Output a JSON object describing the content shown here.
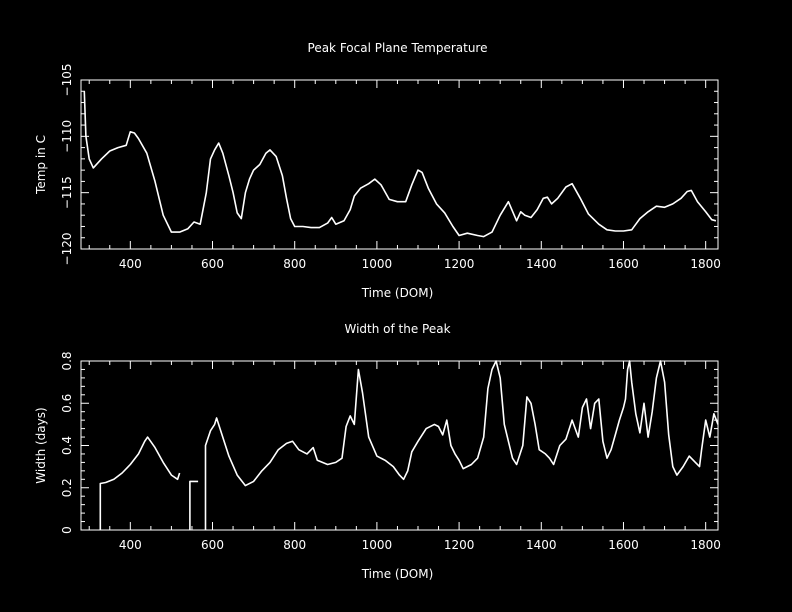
{
  "chart_data": [
    {
      "type": "line",
      "title": "Peak Focal Plane Temperature",
      "xlabel": "Time (DOM)",
      "ylabel": "Temp in C",
      "xlim": [
        280,
        1830
      ],
      "ylim": [
        -120,
        -105
      ],
      "xticks": [
        400,
        600,
        800,
        1000,
        1200,
        1400,
        1600,
        1800
      ],
      "xtick_labels": [
        "400",
        "600",
        "800",
        "1000",
        "1200",
        "1400",
        "1600",
        "1800"
      ],
      "yticks": [
        -120,
        -115,
        -110,
        -105
      ],
      "ytick_labels": [
        "−120",
        "−115",
        "−110",
        "−105"
      ],
      "grid": false,
      "series": [
        {
          "segments": [
            [
              [
                288,
                -106
              ],
              [
                292,
                -110
              ],
              [
                300,
                -112
              ],
              [
                310,
                -112.8
              ],
              [
                330,
                -112
              ],
              [
                350,
                -111.3
              ],
              [
                370,
                -111
              ],
              [
                390,
                -110.8
              ],
              [
                400,
                -109.6
              ],
              [
                410,
                -109.7
              ],
              [
                420,
                -110.2
              ],
              [
                440,
                -111.5
              ],
              [
                460,
                -114
              ],
              [
                480,
                -117
              ],
              [
                500,
                -118.5
              ],
              [
                520,
                -118.5
              ],
              [
                540,
                -118.2
              ],
              [
                555,
                -117.6
              ],
              [
                570,
                -117.8
              ],
              [
                585,
                -115
              ],
              [
                595,
                -112
              ],
              [
                605,
                -111.2
              ],
              [
                615,
                -110.6
              ],
              [
                625,
                -111.5
              ],
              [
                640,
                -113.5
              ],
              [
                650,
                -115
              ],
              [
                660,
                -116.8
              ],
              [
                670,
                -117.3
              ],
              [
                680,
                -115
              ],
              [
                690,
                -113.8
              ],
              [
                700,
                -113
              ],
              [
                715,
                -112.5
              ],
              [
                730,
                -111.5
              ],
              [
                740,
                -111.2
              ],
              [
                755,
                -111.8
              ],
              [
                770,
                -113.5
              ],
              [
                780,
                -115.5
              ],
              [
                790,
                -117.3
              ],
              [
                800,
                -118
              ],
              [
                820,
                -118
              ],
              [
                840,
                -118.1
              ],
              [
                860,
                -118.1
              ],
              [
                880,
                -117.7
              ],
              [
                890,
                -117.2
              ],
              [
                900,
                -117.8
              ],
              [
                920,
                -117.5
              ],
              [
                935,
                -116.5
              ],
              [
                945,
                -115.3
              ],
              [
                960,
                -114.6
              ],
              [
                980,
                -114.2
              ],
              [
                995,
                -113.8
              ],
              [
                1010,
                -114.3
              ],
              [
                1030,
                -115.6
              ],
              [
                1050,
                -115.8
              ],
              [
                1070,
                -115.8
              ],
              [
                1085,
                -114.3
              ],
              [
                1100,
                -113
              ],
              [
                1110,
                -113.2
              ],
              [
                1125,
                -114.6
              ],
              [
                1145,
                -116
              ],
              [
                1165,
                -116.8
              ],
              [
                1185,
                -118
              ],
              [
                1200,
                -118.8
              ],
              [
                1220,
                -118.6
              ],
              [
                1245,
                -118.8
              ],
              [
                1260,
                -118.9
              ],
              [
                1280,
                -118.5
              ],
              [
                1300,
                -117
              ],
              [
                1320,
                -115.8
              ],
              [
                1340,
                -117.5
              ],
              [
                1350,
                -116.7
              ],
              [
                1360,
                -117
              ],
              [
                1375,
                -117.2
              ],
              [
                1390,
                -116.5
              ],
              [
                1405,
                -115.5
              ],
              [
                1415,
                -115.4
              ],
              [
                1425,
                -116
              ],
              [
                1440,
                -115.5
              ],
              [
                1460,
                -114.5
              ],
              [
                1475,
                -114.2
              ],
              [
                1495,
                -115.5
              ],
              [
                1515,
                -116.9
              ],
              [
                1540,
                -117.8
              ],
              [
                1560,
                -118.3
              ],
              [
                1580,
                -118.4
              ],
              [
                1600,
                -118.4
              ],
              [
                1620,
                -118.3
              ],
              [
                1640,
                -117.3
              ],
              [
                1660,
                -116.7
              ],
              [
                1680,
                -116.2
              ],
              [
                1700,
                -116.3
              ],
              [
                1720,
                -116
              ],
              [
                1740,
                -115.5
              ],
              [
                1755,
                -114.9
              ],
              [
                1765,
                -114.8
              ],
              [
                1780,
                -115.8
              ],
              [
                1800,
                -116.7
              ],
              [
                1815,
                -117.4
              ],
              [
                1825,
                -117.5
              ]
            ]
          ]
        }
      ]
    },
    {
      "type": "line",
      "title": "Width of the Peak",
      "xlabel": "Time (DOM)",
      "ylabel": "Width (days)",
      "xlim": [
        280,
        1830
      ],
      "ylim": [
        0,
        0.8
      ],
      "xticks": [
        400,
        600,
        800,
        1000,
        1200,
        1400,
        1600,
        1800
      ],
      "xtick_labels": [
        "400",
        "600",
        "800",
        "1000",
        "1200",
        "1400",
        "1600",
        "1800"
      ],
      "yticks": [
        0,
        0.2,
        0.4,
        0.6,
        0.8
      ],
      "ytick_labels": [
        "0",
        "0.2",
        "0.4",
        "0.6",
        "0.8"
      ],
      "grid": false,
      "series": [
        {
          "segments": [
            [
              [
                327,
                0
              ],
              [
                327,
                0.22
              ],
              [
                340,
                0.225
              ],
              [
                360,
                0.24
              ],
              [
                380,
                0.27
              ],
              [
                400,
                0.31
              ],
              [
                420,
                0.36
              ],
              [
                435,
                0.42
              ],
              [
                442,
                0.44
              ],
              [
                460,
                0.39
              ],
              [
                480,
                0.32
              ],
              [
                500,
                0.26
              ],
              [
                515,
                0.24
              ],
              [
                520,
                0.27
              ]
            ],
            [
              [
                545,
                0
              ],
              [
                545,
                0.23
              ],
              [
                565,
                0.23
              ]
            ],
            [
              [
                583,
                0
              ],
              [
                583,
                0.4
              ],
              [
                595,
                0.47
              ],
              [
                605,
                0.5
              ],
              [
                610,
                0.53
              ],
              [
                620,
                0.47
              ],
              [
                640,
                0.35
              ],
              [
                660,
                0.26
              ],
              [
                680,
                0.21
              ],
              [
                700,
                0.23
              ],
              [
                720,
                0.28
              ],
              [
                740,
                0.32
              ],
              [
                760,
                0.38
              ],
              [
                780,
                0.41
              ],
              [
                795,
                0.42
              ],
              [
                810,
                0.38
              ],
              [
                830,
                0.36
              ],
              [
                845,
                0.39
              ],
              [
                855,
                0.33
              ],
              [
                880,
                0.31
              ],
              [
                900,
                0.32
              ],
              [
                915,
                0.34
              ],
              [
                925,
                0.49
              ],
              [
                935,
                0.54
              ],
              [
                945,
                0.5
              ],
              [
                955,
                0.76
              ],
              [
                965,
                0.65
              ],
              [
                980,
                0.44
              ],
              [
                1000,
                0.35
              ],
              [
                1020,
                0.33
              ],
              [
                1040,
                0.3
              ],
              [
                1055,
                0.26
              ],
              [
                1065,
                0.24
              ],
              [
                1075,
                0.28
              ],
              [
                1085,
                0.37
              ],
              [
                1100,
                0.42
              ],
              [
                1120,
                0.48
              ],
              [
                1140,
                0.5
              ],
              [
                1150,
                0.49
              ],
              [
                1160,
                0.45
              ],
              [
                1170,
                0.52
              ],
              [
                1180,
                0.4
              ],
              [
                1190,
                0.36
              ],
              [
                1200,
                0.33
              ],
              [
                1210,
                0.29
              ],
              [
                1230,
                0.31
              ],
              [
                1245,
                0.34
              ],
              [
                1260,
                0.44
              ],
              [
                1270,
                0.67
              ],
              [
                1280,
                0.76
              ],
              [
                1290,
                0.8
              ],
              [
                1300,
                0.72
              ],
              [
                1310,
                0.5
              ],
              [
                1320,
                0.42
              ],
              [
                1330,
                0.34
              ],
              [
                1340,
                0.31
              ],
              [
                1355,
                0.4
              ],
              [
                1365,
                0.63
              ],
              [
                1375,
                0.6
              ],
              [
                1385,
                0.5
              ],
              [
                1395,
                0.38
              ],
              [
                1410,
                0.36
              ],
              [
                1420,
                0.34
              ],
              [
                1430,
                0.31
              ],
              [
                1445,
                0.4
              ],
              [
                1460,
                0.43
              ],
              [
                1475,
                0.52
              ],
              [
                1490,
                0.44
              ],
              [
                1500,
                0.58
              ],
              [
                1510,
                0.62
              ],
              [
                1520,
                0.48
              ],
              [
                1530,
                0.6
              ],
              [
                1540,
                0.62
              ],
              [
                1550,
                0.42
              ],
              [
                1560,
                0.34
              ],
              [
                1570,
                0.38
              ],
              [
                1580,
                0.45
              ],
              [
                1590,
                0.52
              ],
              [
                1600,
                0.58
              ],
              [
                1605,
                0.62
              ],
              [
                1610,
                0.76
              ],
              [
                1615,
                0.8
              ],
              [
                1620,
                0.7
              ],
              [
                1630,
                0.55
              ],
              [
                1640,
                0.46
              ],
              [
                1650,
                0.6
              ],
              [
                1660,
                0.44
              ],
              [
                1670,
                0.56
              ],
              [
                1680,
                0.72
              ],
              [
                1690,
                0.8
              ],
              [
                1700,
                0.7
              ],
              [
                1710,
                0.45
              ],
              [
                1720,
                0.3
              ],
              [
                1730,
                0.26
              ],
              [
                1745,
                0.3
              ],
              [
                1760,
                0.35
              ],
              [
                1775,
                0.32
              ],
              [
                1785,
                0.3
              ],
              [
                1790,
                0.38
              ],
              [
                1800,
                0.52
              ],
              [
                1810,
                0.44
              ],
              [
                1820,
                0.55
              ],
              [
                1830,
                0.5
              ]
            ]
          ]
        }
      ]
    }
  ]
}
